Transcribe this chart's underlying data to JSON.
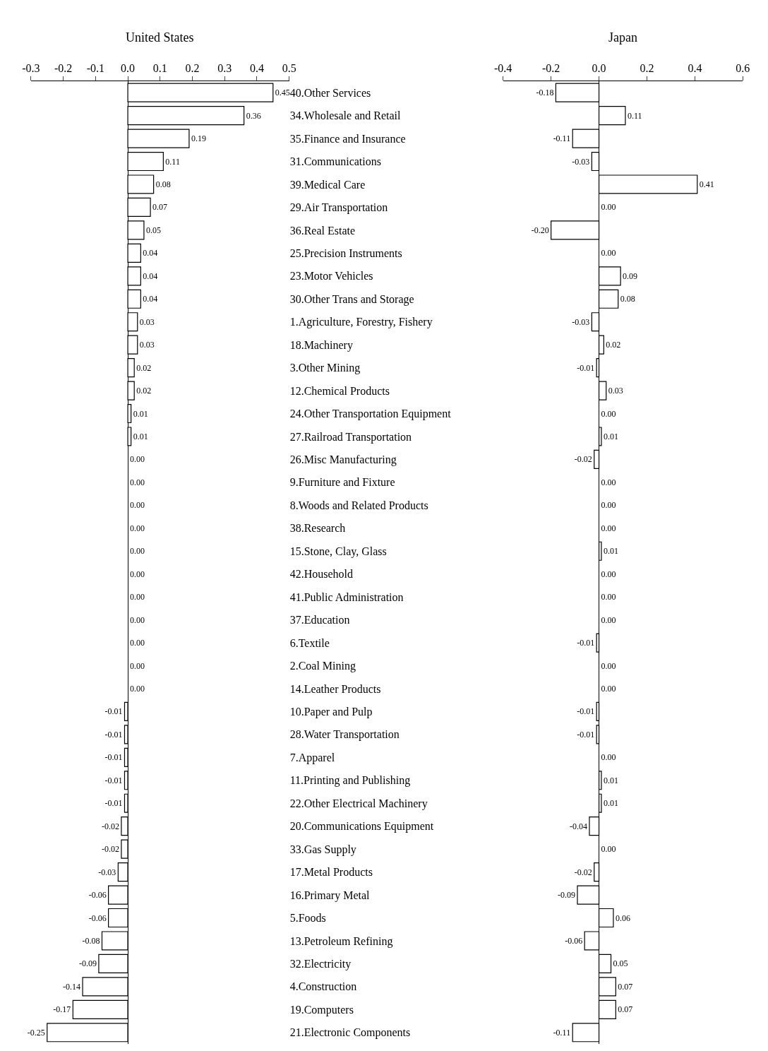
{
  "chart_data": [
    {
      "type": "bar",
      "orientation": "horizontal",
      "title": "United States",
      "color": "#ffffff",
      "xlim": [
        -0.3,
        0.5
      ],
      "xticks": [
        -0.3,
        -0.2,
        -0.1,
        {
          "value": 0,
          "label": "0.0"
        },
        0.1,
        0.2,
        0.3,
        0.4,
        0.5
      ],
      "value_labels": [
        "0.45",
        "0.36",
        "0.19",
        "0.11",
        "0.08",
        "0.07",
        "0.05",
        "0.04",
        "0.04",
        "0.04",
        "0.03",
        "0.03",
        "0.02",
        "0.02",
        "0.01",
        "0.01",
        "0.00",
        "0.00",
        "0.00",
        "0.00",
        "0.00",
        "0.00",
        "0.00",
        "0.00",
        "0.00",
        "0.00",
        "0.00",
        "-0.01",
        "-0.01",
        "-0.01",
        "-0.01",
        "-0.01",
        "-0.02",
        "-0.02",
        "-0.03",
        "-0.06",
        "-0.06",
        "-0.08",
        "-0.09",
        "-0.14",
        "-0.17",
        "-0.25"
      ],
      "categories": [
        "40.Other Services",
        "34.Wholesale and Retail",
        "35.Finance and Insurance",
        "31.Communications",
        "39.Medical Care",
        "29.Air Transportation",
        "36.Real Estate",
        "25.Precision Instruments",
        "23.Motor Vehicles",
        "30.Other Trans and Storage",
        "1.Agriculture, Forestry, Fishery",
        "18.Machinery",
        "3.Other Mining",
        "12.Chemical Products",
        "24.Other Transportation Equipment",
        "27.Railroad Transportation",
        "26.Misc Manufacturing",
        "9.Furniture and Fixture",
        "8.Woods and Related Products",
        "38.Research",
        "15.Stone, Clay, Glass",
        "42.Household",
        "41.Public Administration",
        "37.Education",
        "6.Textile",
        "2.Coal Mining",
        "14.Leather Products",
        "10.Paper and Pulp",
        "28.Water Transportation",
        "7.Apparel",
        "11.Printing and Publishing",
        "22.Other Electrical Machinery",
        "20.Communications Equipment",
        "33.Gas Supply",
        "17.Metal Products",
        "16.Primary Metal",
        "5.Foods",
        "13.Petroleum Refining",
        "32.Electricity",
        "4.Construction",
        "19.Computers",
        "21.Electronic Components"
      ],
      "values": [
        0.45,
        0.36,
        0.19,
        0.11,
        0.08,
        0.07,
        0.05,
        0.04,
        0.04,
        0.04,
        0.03,
        0.03,
        0.02,
        0.02,
        0.01,
        0.01,
        0.0,
        0.0,
        0.0,
        0.0,
        0.0,
        0.0,
        0.0,
        0.0,
        0.0,
        0.0,
        0.0,
        -0.01,
        -0.01,
        -0.01,
        -0.01,
        -0.01,
        -0.02,
        -0.02,
        -0.03,
        -0.06,
        -0.06,
        -0.08,
        -0.09,
        -0.14,
        -0.17,
        -0.25
      ]
    },
    {
      "type": "bar",
      "orientation": "horizontal",
      "title": "Japan",
      "color": "#ffffff",
      "tick_labels": "x",
      "xlim": [
        -0.4,
        0.6
      ],
      "xticks": [
        -0.4,
        -0.2,
        {
          "value": 0,
          "label": "0.0"
        },
        0.2,
        0.4,
        0.6
      ],
      "value_labels": [
        "-0.18",
        "0.11",
        "-0.11",
        "-0.03",
        "0.41",
        "0.00",
        "-0.20",
        "0.00",
        "0.09",
        "0.08",
        "-0.03",
        "0.02",
        "-0.01",
        "0.03",
        "0.00",
        "0.01",
        "-0.02",
        "0.00",
        "0.00",
        "0.00",
        "0.01",
        "0.00",
        "0.00",
        "0.00",
        "-0.01",
        "0.00",
        "0.00",
        "-0.01",
        "-0.01",
        "0.00",
        "0.01",
        "0.01",
        "-0.04",
        "0.00",
        "-0.02",
        "-0.09",
        "0.06",
        "-0.06",
        "0.05",
        "0.07",
        "0.07",
        "-0.11"
      ],
      "categories": [
        "40.Other Services",
        "34.Wholesale and Retail",
        "35.Finance and Insurance",
        "31.Communications",
        "39.Medical Care",
        "29.Air Transportation",
        "36.Real Estate",
        "25.Precision Instruments",
        "23.Motor Vehicles",
        "30.Other Trans and Storage",
        "1.Agriculture, Forestry, Fishery",
        "18.Machinery",
        "3.Other Mining",
        "12.Chemical Products",
        "24.Other Transportation Equipment",
        "27.Railroad Transportation",
        "26.Misc Manufacturing",
        "9.Furniture and Fixture",
        "8.Woods and Related Products",
        "38.Research",
        "15.Stone, Clay, Glass",
        "42.Household",
        "41.Public Administration",
        "37.Education",
        "6.Textile",
        "2.Coal Mining",
        "14.Leather Products",
        "10.Paper and Pulp",
        "28.Water Transportation",
        "7.Apparel",
        "11.Printing and Publishing",
        "22.Other Electrical Machinery",
        "20.Communications Equipment",
        "33.Gas Supply",
        "17.Metal Products",
        "16.Primary Metal",
        "5.Foods",
        "13.Petroleum Refining",
        "32.Electricity",
        "4.Construction",
        "19.Computers",
        "21.Electronic Components"
      ],
      "values": [
        -0.18,
        0.11,
        -0.11,
        -0.03,
        0.41,
        0.0,
        -0.2,
        0.0,
        0.09,
        0.08,
        -0.03,
        0.02,
        -0.01,
        0.03,
        0.0,
        0.01,
        -0.02,
        0.0,
        0.0,
        0.0,
        0.01,
        0.0,
        0.0,
        0.0,
        -0.01,
        0.0,
        0.0,
        -0.01,
        -0.01,
        0.0,
        0.01,
        0.01,
        -0.04,
        0.0,
        -0.02,
        -0.09,
        0.06,
        -0.06,
        0.05,
        0.07,
        0.07,
        -0.11
      ]
    }
  ]
}
